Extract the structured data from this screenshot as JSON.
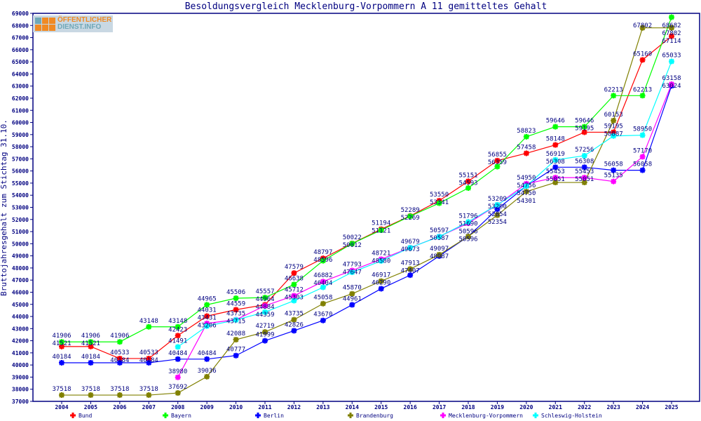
{
  "logo": {
    "line1": "ÖFFENTLICHER",
    "line2": "DIENST.INFO"
  },
  "chart_data": {
    "type": "line",
    "title": "Besoldungsvergleich Mecklenburg-Vorpommern A 11 gemitteltes Gehalt",
    "xlabel": "",
    "ylabel": "Bruttojahresgehalt zum Stichtag 31.10.",
    "ylim": [
      37000,
      69000
    ],
    "ystep": 1000,
    "grid": false,
    "legend_position": "bottom",
    "x": [
      "2004",
      "2005",
      "2006",
      "2007",
      "2008",
      "2009",
      "2010",
      "2011",
      "2012",
      "2013",
      "2014",
      "2015",
      "2016",
      "2017",
      "2018",
      "2019",
      "2020",
      "2021",
      "2022",
      "2023",
      "2024",
      "2025"
    ],
    "series": [
      {
        "name": "Bund",
        "color": "#ff0000",
        "values": [
          41521,
          41521,
          40533,
          40533,
          42423,
          44031,
          44559,
          44964,
          47579,
          48797,
          50022,
          51194,
          52289,
          53550,
          55151,
          56855,
          57458,
          58148,
          59195,
          59195,
          65160,
          67114
        ]
      },
      {
        "name": "Bayern",
        "color": "#00ff00",
        "values": [
          41906,
          41906,
          41906,
          43148,
          43148,
          44965,
          45506,
          45557,
          46638,
          48596,
          50012,
          51121,
          52269,
          53341,
          54593,
          56359,
          58823,
          59646,
          59646,
          62213,
          62213,
          68682
        ]
      },
      {
        "name": "Berlin",
        "color": "#0000ff",
        "values": [
          40184,
          40184,
          40184,
          40184,
          40484,
          40484,
          40777,
          41999,
          42826,
          43670,
          44961,
          46290,
          47407,
          48987,
          50596,
          52854,
          54756,
          56308,
          56308,
          56058,
          56058,
          63024
        ]
      },
      {
        "name": "Brandenburg",
        "color": "#808000",
        "values": [
          37518,
          37518,
          37518,
          37518,
          37692,
          39036,
          42088,
          42719,
          43735,
          45058,
          45870,
          46917,
          47913,
          49097,
          50596,
          52354,
          54301,
          55051,
          55051,
          60153,
          67802,
          67802
        ]
      },
      {
        "name": "Mecklenburg-Vorpommern",
        "color": "#ff00ff",
        "values": [
          null,
          null,
          null,
          null,
          38980,
          43431,
          43735,
          44884,
          45712,
          46882,
          47793,
          48721,
          49679,
          50597,
          51690,
          53200,
          54950,
          55453,
          55453,
          55135,
          57170,
          63158
        ]
      },
      {
        "name": "Schleswig-Holstein",
        "color": "#00ffff",
        "values": [
          null,
          null,
          null,
          null,
          41491,
          43206,
          43715,
          44359,
          45303,
          46404,
          47647,
          48580,
          49673,
          50587,
          51796,
          53209,
          54750,
          56919,
          57256,
          58887,
          58950,
          65033
        ]
      }
    ]
  }
}
